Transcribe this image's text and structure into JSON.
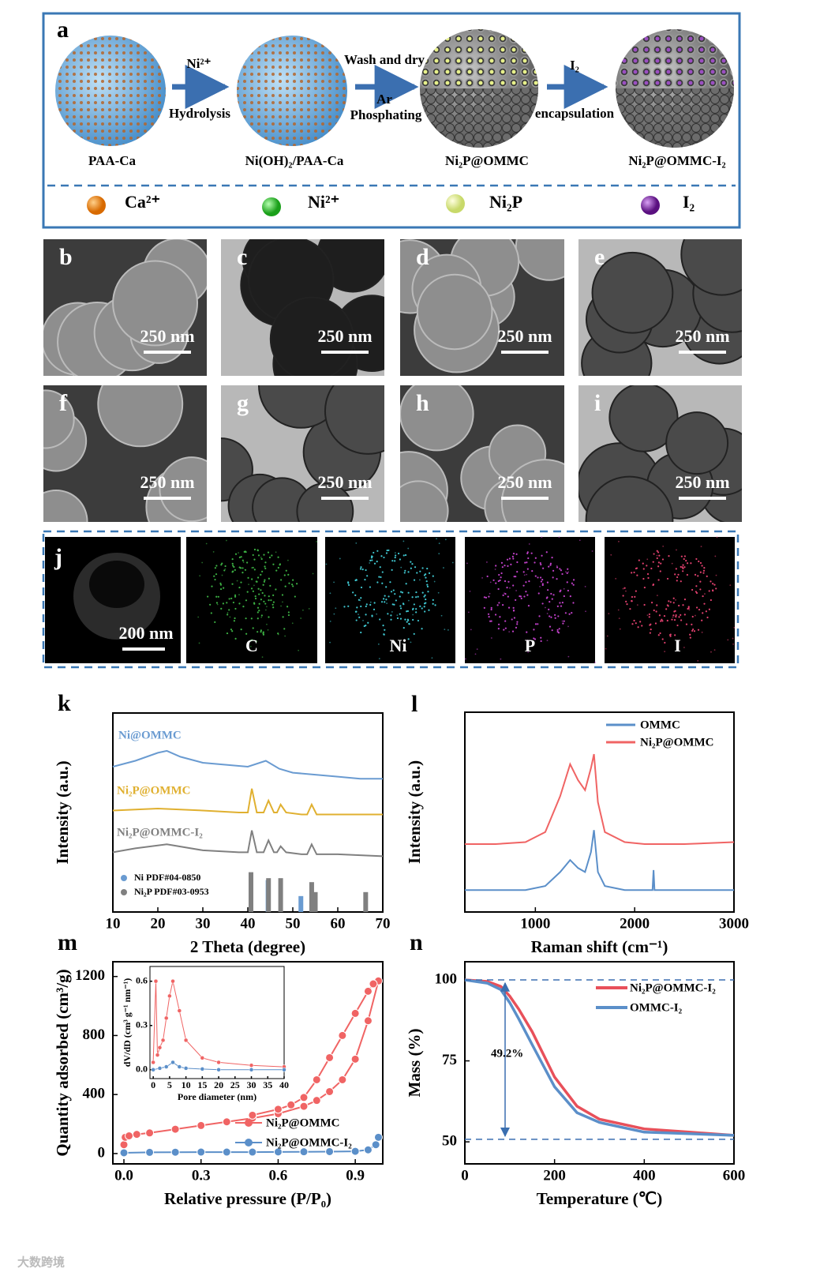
{
  "panel_a": {
    "label": "a",
    "stages": [
      "PAA-Ca",
      "Ni(OH)₂/PAA-Ca",
      "Ni₂P@OMMC",
      "Ni₂P@OMMC-I₂"
    ],
    "steps": [
      [
        "Ni²⁺",
        "Hydrolysis"
      ],
      [
        "Wash and dry",
        "Ar",
        "Phosphating"
      ],
      [
        "I₂",
        "encapsulation"
      ]
    ],
    "legend": [
      "Ca²⁺",
      "Ni²⁺",
      "Ni₂P",
      "I₂"
    ]
  },
  "micrographs": [
    {
      "label": "b",
      "scale": "250 nm"
    },
    {
      "label": "c",
      "scale": "250 nm"
    },
    {
      "label": "d",
      "scale": "250 nm"
    },
    {
      "label": "e",
      "scale": "250 nm"
    },
    {
      "label": "f",
      "scale": "250 nm"
    },
    {
      "label": "g",
      "scale": "250 nm"
    },
    {
      "label": "h",
      "scale": "250 nm"
    },
    {
      "label": "i",
      "scale": "250 nm"
    }
  ],
  "panel_j": {
    "label": "j",
    "scale": "200 nm",
    "maps": [
      "C",
      "Ni",
      "P",
      "I"
    ]
  },
  "chart_k": {
    "type": "line",
    "label": "k",
    "xlabel": "2 Theta (degree)",
    "ylabel": "Intensity (a.u.)",
    "xlim": [
      10,
      70
    ],
    "ylim": [
      0,
      100
    ],
    "xticks": [
      10,
      20,
      30,
      40,
      50,
      60,
      70
    ],
    "series": [
      {
        "name": "Ni@OMMC",
        "color": "#6a9bd1",
        "x": [
          10,
          15,
          20,
          22,
          25,
          30,
          35,
          40,
          44,
          47,
          50,
          55,
          60,
          65,
          70
        ],
        "values": [
          73,
          76,
          80,
          81,
          78,
          75,
          74,
          73,
          76,
          72,
          70,
          69,
          68,
          67,
          67
        ]
      },
      {
        "name": "Ni₂P@OMMC",
        "color": "#e0b030",
        "x": [
          10,
          20,
          30,
          38,
          40,
          40.9,
          42,
          43.5,
          44.6,
          45.8,
          46.5,
          47.3,
          48.5,
          52,
          53.2,
          54.2,
          55.3,
          60,
          70
        ],
        "values": [
          51,
          52,
          51,
          50,
          50,
          62,
          50,
          50,
          56,
          50,
          50,
          54,
          50,
          49,
          49,
          54,
          49,
          49,
          49
        ]
      },
      {
        "name": "Ni₂P@OMMC-I₂",
        "color": "#808080",
        "x": [
          10,
          15,
          22,
          30,
          38,
          40,
          40.9,
          42,
          43.5,
          44.6,
          45.8,
          46.5,
          47.3,
          48.5,
          52,
          53.2,
          54.2,
          55.3,
          60,
          70
        ],
        "values": [
          30,
          32,
          34,
          31,
          30,
          30,
          41,
          30,
          30,
          36,
          30,
          30,
          33,
          30,
          29,
          29,
          34,
          29,
          29,
          28
        ]
      }
    ],
    "reference_patterns": [
      {
        "name": "Ni  PDF#04-0850",
        "color": "#6a9bd1",
        "x": [
          44.5,
          51.8
        ],
        "values": [
          16,
          8
        ]
      },
      {
        "name": "Ni₂P PDF#03-0953",
        "color": "#808080",
        "x": [
          40.7,
          44.6,
          47.3,
          54.2,
          55.0,
          66.2
        ],
        "values": [
          20,
          17,
          17,
          15,
          10,
          10
        ]
      }
    ]
  },
  "chart_l": {
    "type": "line",
    "label": "l",
    "xlabel": "Raman shift (cm⁻¹)",
    "ylabel": "Intensity (a.u.)",
    "xlim": [
      290,
      3000
    ],
    "ylim": [
      0,
      100
    ],
    "xticks": [
      1000,
      2000,
      3000
    ],
    "legend": "upper right",
    "x": [
      290,
      600,
      900,
      1100,
      1250,
      1350,
      1430,
      1500,
      1560,
      1590,
      1630,
      1700,
      1900,
      2100,
      2180,
      2190,
      2200,
      2500,
      3000
    ],
    "series": [
      {
        "name": "OMMC",
        "color": "#5b8fc9",
        "values": [
          11,
          11,
          11,
          13,
          20,
          26,
          22,
          20,
          30,
          41,
          20,
          13,
          11,
          11,
          11,
          21,
          11,
          11,
          11
        ]
      },
      {
        "name": "Ni₂P@OMMC",
        "color": "#f06464",
        "values": [
          34,
          34,
          35,
          40,
          58,
          74,
          66,
          61,
          72,
          79,
          55,
          40,
          35,
          34,
          34,
          34,
          34,
          34,
          35
        ]
      }
    ]
  },
  "chart_m": {
    "type": "scatter",
    "label": "m",
    "xlabel": "Relative pressure (P/P₀)",
    "ylabel": "Quantity adsorbed (cm³/g)",
    "xlim": [
      -0.043,
      1.007
    ],
    "ylim": [
      -70,
      1300
    ],
    "xticks": [
      {
        "value": 0,
        "label": "0.0"
      },
      {
        "value": 0.3,
        "label": "0.3"
      },
      {
        "value": 0.6,
        "label": "0.6"
      },
      {
        "value": 0.9,
        "label": "0.9"
      }
    ],
    "yticks": [
      0,
      400,
      800,
      1200
    ],
    "legend": "lower right",
    "series": [
      {
        "name": "Ni₂P@OMMC",
        "color": "#f06464",
        "x": [
          0.0,
          0.005,
          0.02,
          0.05,
          0.1,
          0.2,
          0.3,
          0.4,
          0.5,
          0.6,
          0.7,
          0.75,
          0.8,
          0.85,
          0.9,
          0.95,
          0.99,
          0.97,
          0.95,
          0.9,
          0.85,
          0.8,
          0.75,
          0.7,
          0.65,
          0.6,
          0.5
        ],
        "values": [
          60,
          110,
          120,
          130,
          140,
          165,
          190,
          215,
          240,
          270,
          320,
          360,
          420,
          500,
          640,
          900,
          1170,
          1150,
          1100,
          950,
          800,
          650,
          500,
          380,
          330,
          300,
          260
        ]
      },
      {
        "name": "Ni₂P@OMMC-I₂",
        "color": "#5b8fc9",
        "x": [
          0.0,
          0.1,
          0.2,
          0.3,
          0.4,
          0.5,
          0.6,
          0.7,
          0.8,
          0.9,
          0.95,
          0.98,
          0.99
        ],
        "values": [
          5,
          8,
          9,
          10,
          10,
          10,
          11,
          12,
          13,
          15,
          25,
          60,
          110
        ]
      }
    ],
    "inset": {
      "xlabel": "Pore diameter (nm)",
      "ylabel": "dV/dD (cm³ g⁻¹ nm⁻¹)",
      "xlim": [
        -1,
        40
      ],
      "ylim": [
        -0.06,
        0.7
      ],
      "xticks": [
        0,
        5,
        10,
        15,
        20,
        25,
        30,
        35,
        40
      ],
      "yticks": [
        {
          "value": 0,
          "label": "0.0"
        },
        {
          "value": 0.3,
          "label": "0.3"
        },
        {
          "value": 0.6,
          "label": "0.6"
        }
      ],
      "series": [
        {
          "color": "#f06464",
          "x": [
            0,
            0.8,
            1.3,
            2,
            3,
            4,
            5,
            6,
            8,
            10,
            15,
            20,
            30,
            40
          ],
          "values": [
            0.05,
            0.6,
            0.1,
            0.15,
            0.2,
            0.35,
            0.5,
            0.6,
            0.4,
            0.2,
            0.08,
            0.05,
            0.03,
            0.02
          ]
        },
        {
          "color": "#5b8fc9",
          "x": [
            0,
            2,
            4,
            6,
            8,
            10,
            15,
            20,
            30,
            40
          ],
          "values": [
            0,
            0.01,
            0.02,
            0.05,
            0.02,
            0.01,
            0.005,
            0,
            0,
            0
          ]
        }
      ]
    }
  },
  "chart_n": {
    "type": "line",
    "label": "n",
    "xlabel": "Temperature (℃)",
    "ylabel": "Mass (%)",
    "xlim": [
      0,
      600
    ],
    "ylim": [
      43.2,
      105.6
    ],
    "xticks": [
      0,
      200,
      400,
      600
    ],
    "yticks": [
      50,
      75,
      100
    ],
    "legend": "upper right",
    "reference_lines": [
      100,
      50.8
    ],
    "annotation": "49.2%",
    "x": [
      0,
      50,
      80,
      100,
      120,
      150,
      200,
      250,
      300,
      400,
      500,
      600
    ],
    "series": [
      {
        "name": "Ni₂P@OMMC-I₂",
        "color": "#e8505a",
        "values": [
          100,
          99.5,
          98,
          95,
          91,
          84,
          70,
          61,
          57,
          54,
          53,
          52
        ]
      },
      {
        "name": "OMMC-I₂",
        "color": "#5b8fc9",
        "values": [
          100,
          99,
          97,
          93,
          88,
          80,
          67,
          59,
          56,
          53,
          52.5,
          52
        ]
      }
    ]
  },
  "watermark": "大数跨境"
}
